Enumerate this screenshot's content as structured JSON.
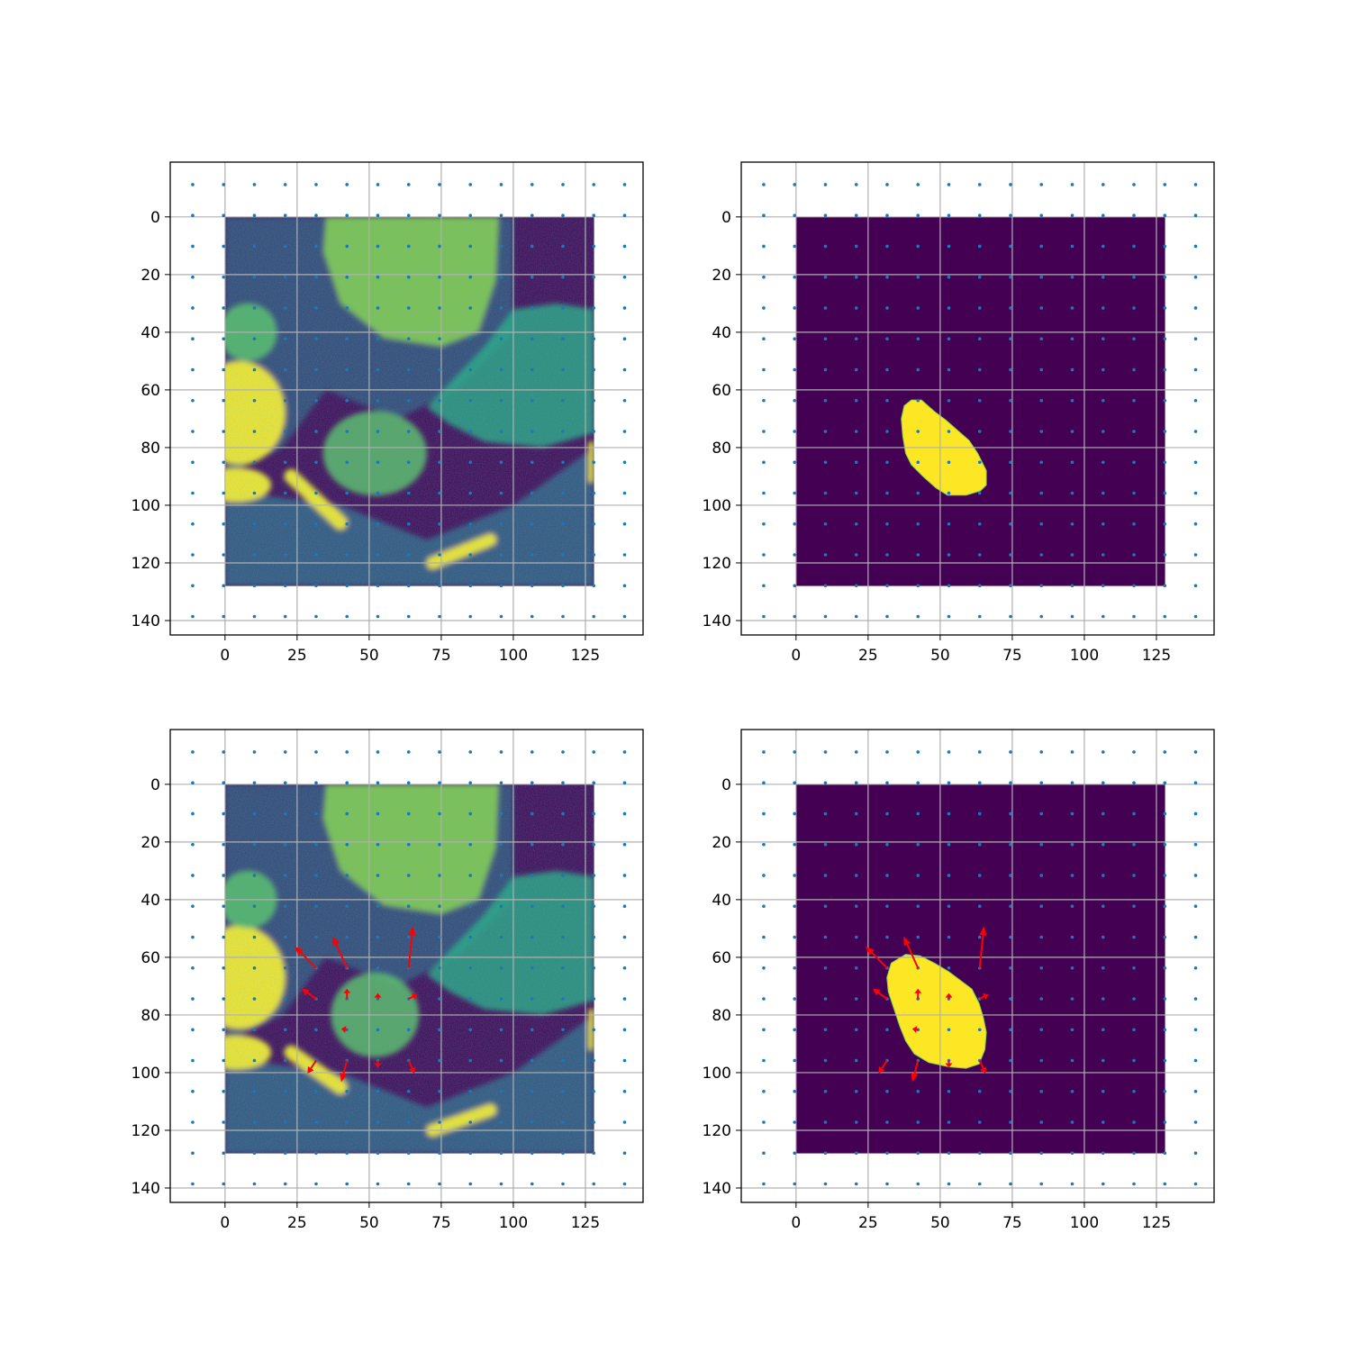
{
  "chart_data": [
    {
      "type": "heatmap",
      "panel": "top-left",
      "content": "CT image slice",
      "image_extent": [
        0,
        128,
        128,
        0
      ],
      "xlim": [
        -19,
        145
      ],
      "ylim": [
        145,
        -19
      ],
      "xticks": [
        0,
        25,
        50,
        75,
        100,
        125
      ],
      "yticks": [
        0,
        20,
        40,
        60,
        80,
        100,
        120,
        140
      ],
      "grid": true,
      "point_grid": {
        "x": [
          -11.2,
          -0.5,
          10.2,
          20.9,
          31.6,
          42.3,
          53,
          63.7,
          74.4,
          85.1,
          95.8,
          106.5,
          117.2,
          127.9,
          138.6
        ],
        "y": [
          -11.2,
          -0.5,
          10.2,
          20.9,
          31.6,
          42.3,
          53,
          63.7,
          74.4,
          85.1,
          95.8,
          106.5,
          117.2,
          127.9,
          138.6
        ],
        "color": "#1f77b4"
      },
      "arrows": []
    },
    {
      "type": "heatmap",
      "panel": "top-right",
      "content": "binary segmentation mask",
      "image_extent": [
        0,
        128,
        128,
        0
      ],
      "xlim": [
        -19,
        145
      ],
      "ylim": [
        145,
        -19
      ],
      "xticks": [
        0,
        25,
        50,
        75,
        100,
        125
      ],
      "yticks": [
        0,
        20,
        40,
        60,
        80,
        100,
        120,
        140
      ],
      "grid": true,
      "point_grid": {
        "x": [
          -11.2,
          -0.5,
          10.2,
          20.9,
          31.6,
          42.3,
          53,
          63.7,
          74.4,
          85.1,
          95.8,
          106.5,
          117.2,
          127.9,
          138.6
        ],
        "y": [
          -11.2,
          -0.5,
          10.2,
          20.9,
          31.6,
          42.3,
          53,
          63.7,
          74.4,
          85.1,
          95.8,
          106.5,
          117.2,
          127.9,
          138.6
        ],
        "color": "#1f77b4"
      },
      "mask_outline": [
        [
          37.5,
          65.5
        ],
        [
          40,
          63.5
        ],
        [
          43.5,
          63.5
        ],
        [
          48,
          67.5
        ],
        [
          52,
          70.5
        ],
        [
          56,
          74
        ],
        [
          60,
          77.5
        ],
        [
          63,
          82
        ],
        [
          66,
          88
        ],
        [
          66,
          93
        ],
        [
          64,
          95
        ],
        [
          59,
          96.5
        ],
        [
          52.5,
          96.5
        ],
        [
          48.5,
          94
        ],
        [
          44,
          90
        ],
        [
          40,
          86
        ],
        [
          38,
          82
        ],
        [
          37,
          76
        ],
        [
          36.5,
          70
        ]
      ],
      "arrows": []
    },
    {
      "type": "heatmap",
      "panel": "bottom-left",
      "content": "deformed CT image slice",
      "image_extent": [
        0,
        128,
        128,
        0
      ],
      "xlim": [
        -19,
        145
      ],
      "ylim": [
        145,
        -19
      ],
      "xticks": [
        0,
        25,
        50,
        75,
        100,
        125
      ],
      "yticks": [
        0,
        20,
        40,
        60,
        80,
        100,
        120,
        140
      ],
      "grid": true,
      "point_grid": {
        "x": [
          -11.2,
          -0.5,
          10.2,
          20.9,
          31.6,
          42.3,
          53,
          63.7,
          74.4,
          85.1,
          95.8,
          106.5,
          117.2,
          127.9,
          138.6
        ],
        "y": [
          -11.2,
          -0.5,
          10.2,
          20.9,
          31.6,
          42.3,
          53,
          63.7,
          74.4,
          85.1,
          95.8,
          106.5,
          117.2,
          127.9,
          138.6
        ],
        "color": "#1f77b4"
      },
      "arrows": [
        {
          "x": 31.6,
          "y": 63.7,
          "dx": -7.5,
          "dy": -7.5
        },
        {
          "x": 42.3,
          "y": 63.7,
          "dx": -5,
          "dy": -11
        },
        {
          "x": 63.7,
          "y": 63.7,
          "dx": 1.5,
          "dy": -14.5
        },
        {
          "x": 31.6,
          "y": 74.4,
          "dx": -5,
          "dy": -3.5
        },
        {
          "x": 42.3,
          "y": 74.4,
          "dx": 0,
          "dy": -3.5
        },
        {
          "x": 53,
          "y": 74.4,
          "dx": 0,
          "dy": -2
        },
        {
          "x": 63.7,
          "y": 74.4,
          "dx": 3,
          "dy": -1.5
        },
        {
          "x": 42.3,
          "y": 85.1,
          "dx": -2,
          "dy": -0.3
        },
        {
          "x": 31.6,
          "y": 95.8,
          "dx": -3,
          "dy": 4.5
        },
        {
          "x": 42.3,
          "y": 95.8,
          "dx": -2,
          "dy": 7.5
        },
        {
          "x": 53,
          "y": 95.8,
          "dx": 0,
          "dy": 2.5
        },
        {
          "x": 63.7,
          "y": 95.8,
          "dx": 2,
          "dy": 4.5
        }
      ]
    },
    {
      "type": "heatmap",
      "panel": "bottom-right",
      "content": "deformed segmentation mask",
      "image_extent": [
        0,
        128,
        128,
        0
      ],
      "xlim": [
        -19,
        145
      ],
      "ylim": [
        145,
        -19
      ],
      "xticks": [
        0,
        25,
        50,
        75,
        100,
        125
      ],
      "yticks": [
        0,
        20,
        40,
        60,
        80,
        100,
        120,
        140
      ],
      "grid": true,
      "point_grid": {
        "x": [
          -11.2,
          -0.5,
          10.2,
          20.9,
          31.6,
          42.3,
          53,
          63.7,
          74.4,
          85.1,
          95.8,
          106.5,
          117.2,
          127.9,
          138.6
        ],
        "y": [
          -11.2,
          -0.5,
          10.2,
          20.9,
          31.6,
          42.3,
          53,
          63.7,
          74.4,
          85.1,
          95.8,
          106.5,
          117.2,
          127.9,
          138.6
        ],
        "color": "#1f77b4"
      },
      "mask_outline": [
        [
          33,
          62
        ],
        [
          38,
          59
        ],
        [
          43,
          59.5
        ],
        [
          48,
          62
        ],
        [
          53,
          65
        ],
        [
          57,
          68
        ],
        [
          61,
          71
        ],
        [
          63.5,
          76
        ],
        [
          65,
          81
        ],
        [
          66,
          86
        ],
        [
          65.5,
          92
        ],
        [
          63.5,
          97
        ],
        [
          59,
          98.5
        ],
        [
          53,
          98
        ],
        [
          46,
          96.5
        ],
        [
          41,
          93.5
        ],
        [
          38,
          89
        ],
        [
          36,
          84
        ],
        [
          34,
          78
        ],
        [
          32,
          72
        ],
        [
          31.5,
          67
        ]
      ],
      "arrows": [
        {
          "x": 31.6,
          "y": 63.7,
          "dx": -7.5,
          "dy": -7.5
        },
        {
          "x": 42.3,
          "y": 63.7,
          "dx": -5,
          "dy": -11
        },
        {
          "x": 63.7,
          "y": 63.7,
          "dx": 1.5,
          "dy": -14.5
        },
        {
          "x": 31.6,
          "y": 74.4,
          "dx": -5,
          "dy": -3.5
        },
        {
          "x": 42.3,
          "y": 74.4,
          "dx": 0,
          "dy": -3.5
        },
        {
          "x": 53,
          "y": 74.4,
          "dx": 0,
          "dy": -2
        },
        {
          "x": 63.7,
          "y": 74.4,
          "dx": 3,
          "dy": -1.5
        },
        {
          "x": 42.3,
          "y": 85.1,
          "dx": -2,
          "dy": -0.3
        },
        {
          "x": 31.6,
          "y": 95.8,
          "dx": -3,
          "dy": 4.5
        },
        {
          "x": 42.3,
          "y": 95.8,
          "dx": -2,
          "dy": 7.5
        },
        {
          "x": 53,
          "y": 95.8,
          "dx": 0,
          "dy": 2.5
        },
        {
          "x": 63.7,
          "y": 95.8,
          "dx": 2,
          "dy": 4.5
        }
      ]
    }
  ],
  "colors": {
    "viridis_dark": "#440154",
    "viridis_yellow": "#fde725",
    "viridis_teal": "#21918c",
    "viridis_green": "#8fd744",
    "grid": "#b0b0b0",
    "arrow": "#ff0000",
    "point": "#1f77b4"
  }
}
